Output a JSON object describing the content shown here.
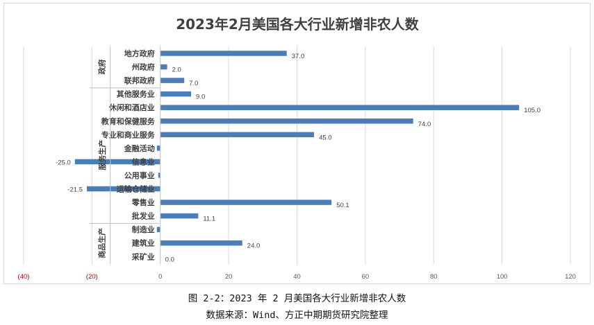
{
  "chart_data": {
    "type": "bar",
    "orientation": "horizontal",
    "title": "2023年2月美国各大行业新增非农人数",
    "groups": [
      {
        "name": "政府",
        "categories": [
          "地方政府",
          "州政府",
          "联邦政府"
        ]
      },
      {
        "name": "服务生产",
        "categories": [
          "其他服务业",
          "休闲和酒店业",
          "教育和保健服务",
          "专业和商业服务",
          "金融活动",
          "信息业",
          "公用事业",
          "运输仓储业",
          "零售业",
          "批发业"
        ]
      },
      {
        "name": "商品生产",
        "categories": [
          "制造业",
          "建筑业",
          "采矿业"
        ]
      }
    ],
    "categories": [
      "地方政府",
      "州政府",
      "联邦政府",
      "其他服务业",
      "休闲和酒店业",
      "教育和保健服务",
      "专业和商业服务",
      "金融活动",
      "信息业",
      "公用事业",
      "运输仓储业",
      "零售业",
      "批发业",
      "制造业",
      "建筑业",
      "采矿业"
    ],
    "values": [
      37.0,
      2.0,
      7.0,
      9.0,
      105.0,
      74.0,
      45.0,
      -1.0,
      -25.0,
      -0.6,
      -21.5,
      50.1,
      11.1,
      -1.0,
      24.0,
      0.0
    ],
    "data_labels": [
      "37.0",
      "2.0",
      "7.0",
      "9.0",
      "105.0",
      "74.0",
      "45.0",
      "",
      "-25.0",
      "",
      "-21.5",
      "50.1",
      "11.1",
      "",
      "24.0",
      "0.0"
    ],
    "xlim": [
      -40,
      120
    ],
    "x_ticks": [
      -40,
      -20,
      0,
      20,
      40,
      60,
      80,
      100,
      120
    ],
    "x_tick_labels": [
      "(40)",
      "(20)",
      "0",
      "20",
      "40",
      "60",
      "80",
      "100",
      "120"
    ],
    "grid": true,
    "xlabel": "",
    "ylabel": "",
    "colors": {
      "bar": "#4a7ebb",
      "negative_tick": "#c00000",
      "grid": "#d9d9d9"
    }
  },
  "captions": {
    "figure": "图 2-2：2023 年 2 月美国各大行业新增非农人数",
    "source": "数据来源：Wind、方正中期期货研究院整理"
  }
}
